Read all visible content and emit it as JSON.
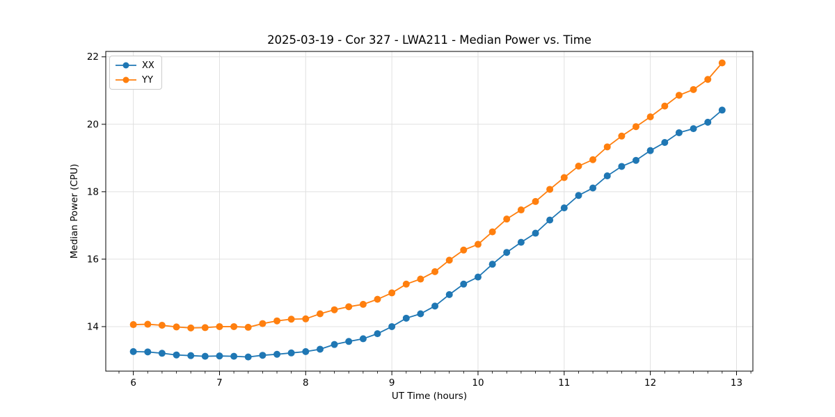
{
  "figure": {
    "background": "#ffffff"
  },
  "chart_data": {
    "type": "line",
    "title": "2025-03-19 - Cor 327 - LWA211 - Median Power vs. Time",
    "xlabel": "UT Time (hours)",
    "ylabel": "Median Power (CPU)",
    "xlim": [
      5.68,
      13.19
    ],
    "ylim": [
      12.68,
      22.16
    ],
    "x_ticks": [
      6,
      7,
      8,
      9,
      10,
      11,
      12,
      13
    ],
    "y_ticks": [
      14,
      16,
      18,
      20,
      22
    ],
    "x_minor_ticks_per_hour": 6,
    "grid": true,
    "grid_color": "#e0e0e0",
    "spine_color": "#000000",
    "legend_position": "upper-left",
    "x": [
      6.0,
      6.167,
      6.333,
      6.5,
      6.667,
      6.833,
      7.0,
      7.167,
      7.333,
      7.5,
      7.667,
      7.833,
      8.0,
      8.167,
      8.333,
      8.5,
      8.667,
      8.833,
      9.0,
      9.167,
      9.333,
      9.5,
      9.667,
      9.833,
      10.0,
      10.167,
      10.333,
      10.5,
      10.667,
      10.833,
      11.0,
      11.167,
      11.333,
      11.5,
      11.667,
      11.833,
      12.0,
      12.167,
      12.333,
      12.5,
      12.667,
      12.833
    ],
    "series": [
      {
        "name": "XX",
        "color": "#1f77b4",
        "marker": "circle",
        "values": [
          13.26,
          13.25,
          13.21,
          13.16,
          13.14,
          13.12,
          13.13,
          13.12,
          13.1,
          13.15,
          13.18,
          13.22,
          13.26,
          13.33,
          13.47,
          13.56,
          13.64,
          13.79,
          14.0,
          14.25,
          14.38,
          14.61,
          14.95,
          15.26,
          15.47,
          15.85,
          16.2,
          16.5,
          16.77,
          17.16,
          17.52,
          17.89,
          18.11,
          18.47,
          18.75,
          18.93,
          19.22,
          19.46,
          19.75,
          19.87,
          20.06,
          20.42
        ]
      },
      {
        "name": "YY",
        "color": "#ff7f0e",
        "marker": "circle",
        "values": [
          14.06,
          14.07,
          14.04,
          13.99,
          13.96,
          13.97,
          14.0,
          14.0,
          13.98,
          14.09,
          14.17,
          14.22,
          14.23,
          14.38,
          14.5,
          14.59,
          14.66,
          14.81,
          15.0,
          15.26,
          15.41,
          15.63,
          15.97,
          16.27,
          16.44,
          16.81,
          17.19,
          17.46,
          17.71,
          18.07,
          18.42,
          18.76,
          18.95,
          19.33,
          19.65,
          19.93,
          20.22,
          20.54,
          20.86,
          21.03,
          21.33,
          21.82
        ]
      }
    ]
  }
}
